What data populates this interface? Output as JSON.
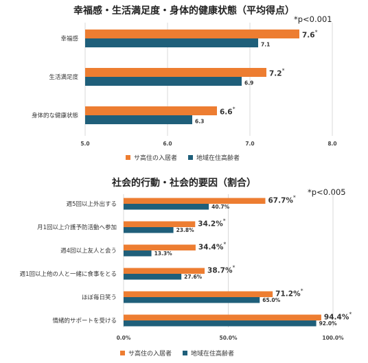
{
  "colors": {
    "orange": "#ED7D31",
    "blue": "#1F5F7A",
    "grid": "#D9D9D9"
  },
  "chart_data": [
    {
      "type": "bar",
      "orientation": "horizontal",
      "title": "幸福感・生活満足度・身体的健康状態（平均得点）",
      "note": "*p<0.001",
      "categories": [
        "幸福感",
        "生活満足度",
        "身体的な健康状態"
      ],
      "series": [
        {
          "name": "サ高住の入居者",
          "values": [
            7.6,
            7.2,
            6.6
          ],
          "labels": [
            "7.6",
            "7.2",
            "6.6"
          ],
          "significant": [
            true,
            true,
            true
          ]
        },
        {
          "name": "地域在住高齢者",
          "values": [
            7.1,
            6.9,
            6.3
          ],
          "labels": [
            "7.1",
            "6.9",
            "6.3"
          ]
        }
      ],
      "xlim": [
        5.0,
        8.0
      ],
      "ticks": [
        "5.0",
        "6.0",
        "7.0",
        "8.0"
      ],
      "tick_values": [
        5,
        6,
        7,
        8
      ],
      "grid": true,
      "legend": "bottom"
    },
    {
      "type": "bar",
      "orientation": "horizontal",
      "title": "社会的行動・社会的要因（割合）",
      "note": "*p<0.005",
      "categories": [
        "週5回以上外出する",
        "月1回以上介護予防活動へ参加",
        "週4回以上友人と会う",
        "週1回以上他の人と一緒に食事をとる",
        "ほぼ毎日笑う",
        "情緒的サポートを受ける"
      ],
      "series": [
        {
          "name": "サ高住の入居者",
          "values": [
            67.7,
            34.2,
            34.4,
            38.7,
            71.2,
            94.4
          ],
          "labels": [
            "67.7%",
            "34.2%",
            "34.4%",
            "38.7%",
            "71.2%",
            "94.4%"
          ],
          "significant": [
            true,
            true,
            true,
            true,
            true,
            true
          ]
        },
        {
          "name": "地域在住高齢者",
          "values": [
            40.7,
            23.8,
            13.3,
            27.6,
            65.0,
            92.0
          ],
          "labels": [
            "40.7%",
            "23.8%",
            "13.3%",
            "27.6%",
            "65.0%",
            "92.0%"
          ]
        }
      ],
      "xlim": [
        0,
        100
      ],
      "ticks": [
        "0.0%",
        "50.0%",
        "100.0%"
      ],
      "tick_values": [
        0,
        50,
        100
      ],
      "grid": true,
      "legend": "bottom"
    }
  ]
}
